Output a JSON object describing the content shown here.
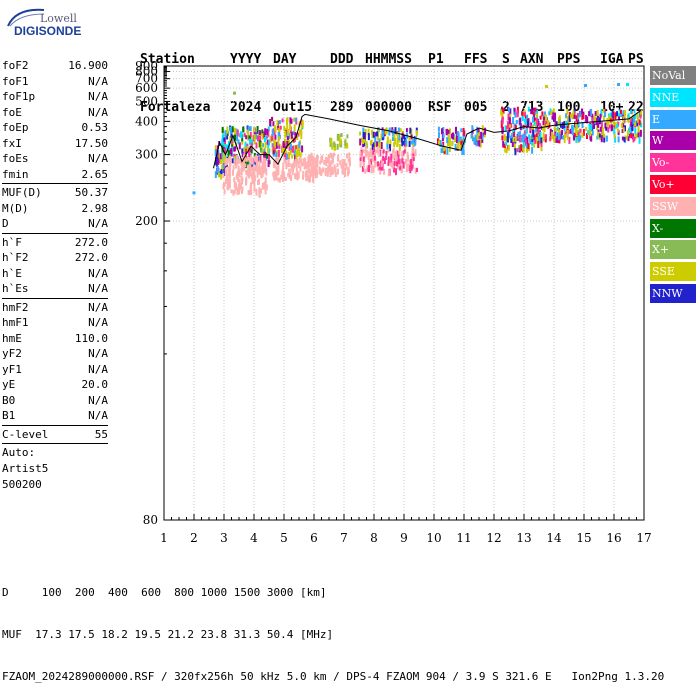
{
  "logo": {
    "line1": "Lowell",
    "line2": "DIGISONDE"
  },
  "header": {
    "labels": [
      "Station",
      "YYYY",
      "DAY",
      "DDD",
      "HHMMSS",
      "P1",
      "FFS",
      "S",
      "AXN",
      "PPS",
      "IGA",
      "PS"
    ],
    "values": [
      "Fortaleza",
      "2024",
      "Out15",
      "289",
      "000000",
      "RSF",
      "005",
      "2",
      "713",
      "100",
      "10+",
      "22"
    ]
  },
  "params": {
    "group1": [
      {
        "name": "foF2",
        "value": "16.900"
      },
      {
        "name": "foF1",
        "value": "N/A"
      },
      {
        "name": "foF1p",
        "value": "N/A"
      },
      {
        "name": "foE",
        "value": "N/A"
      },
      {
        "name": "foEp",
        "value": "0.53"
      },
      {
        "name": "fxI",
        "value": "17.50"
      },
      {
        "name": "foEs",
        "value": "N/A"
      },
      {
        "name": "fmin",
        "value": "2.65"
      }
    ],
    "group2": [
      {
        "name": "MUF(D)",
        "value": "50.37"
      },
      {
        "name": "M(D)",
        "value": "2.98"
      },
      {
        "name": "D",
        "value": "N/A"
      }
    ],
    "group3": [
      {
        "name": "h`F",
        "value": "272.0"
      },
      {
        "name": "h`F2",
        "value": "272.0"
      },
      {
        "name": "h`E",
        "value": "N/A"
      },
      {
        "name": "h`Es",
        "value": "N/A"
      }
    ],
    "group4": [
      {
        "name": "hmF2",
        "value": "N/A"
      },
      {
        "name": "hmF1",
        "value": "N/A"
      },
      {
        "name": "hmE",
        "value": "110.0"
      },
      {
        "name": "yF2",
        "value": "N/A"
      },
      {
        "name": "yF1",
        "value": "N/A"
      },
      {
        "name": "yE",
        "value": "20.0"
      },
      {
        "name": "B0",
        "value": "N/A"
      },
      {
        "name": "B1",
        "value": "N/A"
      }
    ],
    "clevel": {
      "name": "C-level",
      "value": "55"
    },
    "auto": {
      "line1": "Auto:",
      "line2": "Artist5",
      "line3": "500200"
    }
  },
  "legend": [
    {
      "label": "NoVal",
      "color": "#808080"
    },
    {
      "label": "NNE",
      "color": "#00e5ff"
    },
    {
      "label": "E",
      "color": "#33aaff"
    },
    {
      "label": "W",
      "color": "#aa00aa"
    },
    {
      "label": "Vo-",
      "color": "#ff3399"
    },
    {
      "label": "Vo+",
      "color": "#ff0033"
    },
    {
      "label": "SSW",
      "color": "#ffb0b0"
    },
    {
      "label": "X-",
      "color": "#007700"
    },
    {
      "label": "X+",
      "color": "#88bb55"
    },
    {
      "label": "SSE",
      "color": "#cccc00"
    },
    {
      "label": "NNW",
      "color": "#2222cc"
    }
  ],
  "bottom": {
    "dline": "D     100  200  400  600  800 1000 1500 3000 [km]",
    "mufline": "MUF  17.3 17.5 18.2 19.5 21.2 23.8 31.3 50.4 [MHz]",
    "fileline": "FZAOM_2024289000000.RSF / 320fx256h 50 kHz 5.0 km / DPS-4 FZAOM 904 / 3.9 S 321.6 E   Ion2Png 1.3.20"
  },
  "chart_data": {
    "type": "scatter",
    "x_ticks": [
      "1",
      "2",
      "3",
      "4",
      "5",
      "6",
      "7",
      "8",
      "9",
      "10",
      "11",
      "12",
      "13",
      "14",
      "15",
      "16",
      "17"
    ],
    "y_ticks": [
      "80",
      "200",
      "300",
      "400",
      "500",
      "600",
      "700",
      "800",
      "900"
    ],
    "xlim": [
      1,
      17
    ],
    "y_scale": "reciprocal",
    "y_tick_values": [
      80,
      200,
      300,
      400,
      500,
      600,
      700,
      800,
      900
    ],
    "ylim": [
      80,
      900
    ],
    "grid": true,
    "trace": {
      "x": [
        2.65,
        2.85,
        3.05,
        3.3,
        3.6,
        3.9,
        4.2,
        4.5,
        4.8,
        5.1,
        5.4,
        5.6,
        5.7,
        6.5,
        7.5,
        8.5,
        9.5,
        10.3,
        10.9,
        11.1,
        11.5,
        12.0,
        12.5,
        13.0,
        13.5,
        14.0,
        14.5,
        15.0,
        15.5,
        16.0,
        16.5,
        16.9
      ],
      "y": [
        272,
        330,
        300,
        350,
        285,
        320,
        300,
        300,
        280,
        320,
        345,
        420,
        430,
        410,
        385,
        365,
        340,
        320,
        310,
        355,
        375,
        360,
        365,
        380,
        375,
        385,
        390,
        395,
        400,
        405,
        410,
        450
      ]
    },
    "clusters": [
      {
        "x0": 2.65,
        "x1": 3.1,
        "y0": 260,
        "y1": 335,
        "colors": [
          "#cccc00",
          "#33aaff",
          "#aa00aa",
          "#2222cc"
        ]
      },
      {
        "x0": 2.9,
        "x1": 4.5,
        "y0": 285,
        "y1": 385,
        "colors": [
          "#cccc00",
          "#cccc00",
          "#33aaff",
          "#00e5ff",
          "#aa00aa",
          "#ff3399",
          "#2222cc",
          "#007700"
        ]
      },
      {
        "x0": 2.9,
        "x1": 4.4,
        "y0": 235,
        "y1": 300,
        "colors": [
          "#ffb0b0",
          "#ffb0b0",
          "#ffb0b0"
        ]
      },
      {
        "x0": 4.5,
        "x1": 5.6,
        "y0": 300,
        "y1": 420,
        "colors": [
          "#cccc00",
          "#cccc00",
          "#33aaff",
          "#aa00aa",
          "#ff3399"
        ]
      },
      {
        "x0": 4.6,
        "x1": 6.0,
        "y0": 255,
        "y1": 300,
        "colors": [
          "#ffb0b0",
          "#ffb0b0"
        ]
      },
      {
        "x0": 6.5,
        "x1": 7.1,
        "y0": 325,
        "y1": 360,
        "colors": [
          "#cccc00",
          "#cccc00",
          "#88bb55"
        ]
      },
      {
        "x0": 5.8,
        "x1": 7.2,
        "y0": 265,
        "y1": 305,
        "colors": [
          "#ffb0b0"
        ]
      },
      {
        "x0": 7.5,
        "x1": 9.4,
        "y0": 325,
        "y1": 380,
        "colors": [
          "#cccc00",
          "#cccc00",
          "#33aaff",
          "#aa00aa",
          "#2222cc"
        ]
      },
      {
        "x0": 7.5,
        "x1": 9.4,
        "y0": 270,
        "y1": 320,
        "colors": [
          "#ffb0b0",
          "#ffb0b0",
          "#ff3399"
        ]
      },
      {
        "x0": 10.1,
        "x1": 11.0,
        "y0": 310,
        "y1": 380,
        "colors": [
          "#cccc00",
          "#33aaff",
          "#aa00aa",
          "#ff0033"
        ]
      },
      {
        "x0": 11.2,
        "x1": 11.7,
        "y0": 330,
        "y1": 390,
        "colors": [
          "#cccc00",
          "#aa00aa",
          "#33aaff"
        ]
      },
      {
        "x0": 12.2,
        "x1": 13.6,
        "y0": 315,
        "y1": 470,
        "colors": [
          "#cccc00",
          "#00e5ff",
          "#33aaff",
          "#aa00aa",
          "#ff3399",
          "#2222cc",
          "#ff0033"
        ]
      },
      {
        "x0": 13.6,
        "x1": 16.9,
        "y0": 345,
        "y1": 460,
        "colors": [
          "#cccc00",
          "#cccc00",
          "#cccc00",
          "#aa00aa",
          "#aa00aa",
          "#ff3399",
          "#33aaff",
          "#2222cc",
          "#ff0033",
          "#00e5ff"
        ]
      }
    ],
    "isolated_points": [
      {
        "x": 3.3,
        "y": 570,
        "color": "#88bb55"
      },
      {
        "x": 13.7,
        "y": 630,
        "color": "#cccc00"
      },
      {
        "x": 16.1,
        "y": 650,
        "color": "#33aaff"
      },
      {
        "x": 16.4,
        "y": 650,
        "color": "#00e5ff"
      },
      {
        "x": 15.0,
        "y": 640,
        "color": "#33aaff"
      },
      {
        "x": 1.95,
        "y": 235,
        "color": "#33aaff"
      }
    ]
  }
}
